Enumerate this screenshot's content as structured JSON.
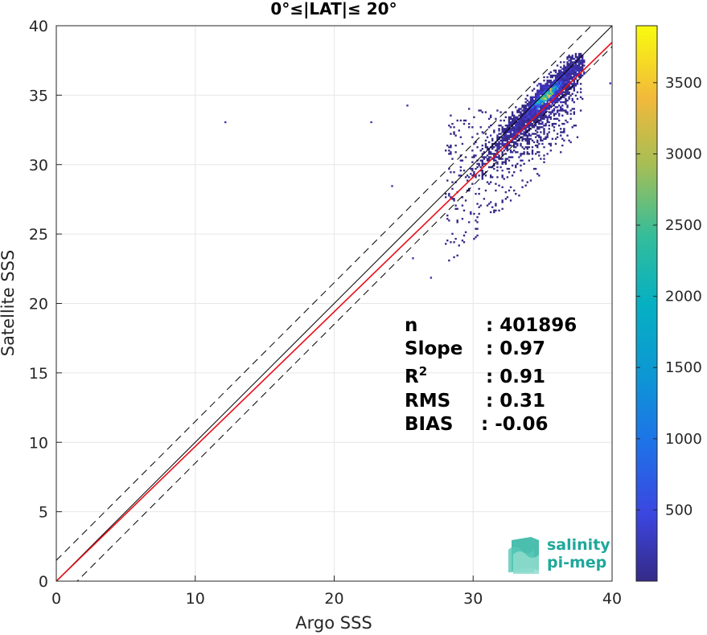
{
  "chart_data": {
    "type": "heatmap",
    "title": "0°≤|LAT|≤ 20°",
    "xlabel": "Argo SSS",
    "ylabel": "Satellite SSS",
    "xlim": [
      0,
      40
    ],
    "ylim": [
      0,
      40
    ],
    "xticks": [
      "0",
      "10",
      "20",
      "30",
      "40"
    ],
    "yticks": [
      "0",
      "5",
      "10",
      "15",
      "20",
      "25",
      "30",
      "35",
      "40"
    ],
    "grid": true,
    "lines": [
      {
        "name": "identity",
        "slope": 1.0,
        "intercept": 0.0,
        "color": "#000000",
        "style": "solid"
      },
      {
        "name": "upper-bound",
        "slope": 1.0,
        "intercept": 1.5,
        "color": "#000000",
        "style": "dashed"
      },
      {
        "name": "lower-bound",
        "slope": 1.0,
        "intercept": -1.5,
        "color": "#000000",
        "style": "dashed"
      },
      {
        "name": "regression",
        "slope": 0.97,
        "intercept": 0.0,
        "color": "#e8101a",
        "style": "solid"
      }
    ],
    "density_core": {
      "x_center": 35.2,
      "y_center": 34.9,
      "x_range": [
        27,
        38
      ],
      "y_range": [
        22,
        38
      ]
    },
    "outliers": [
      [
        12.1,
        33.0
      ],
      [
        22.6,
        33.0
      ],
      [
        39.8,
        35.8
      ],
      [
        25.2,
        34.2
      ],
      [
        24.1,
        28.4
      ],
      [
        25.6,
        23.2
      ],
      [
        26.9,
        21.8
      ]
    ],
    "colorbar": {
      "min": 0,
      "max": 3900,
      "ticks": [
        "500",
        "1000",
        "1500",
        "2000",
        "2500",
        "3000",
        "3500"
      ],
      "colormap": "parula"
    },
    "stats": [
      {
        "label": "n",
        "value": ": 401896"
      },
      {
        "label": "Slope",
        "value": ": 0.97"
      },
      {
        "label": "R",
        "sup": "2",
        "value": ": 0.91"
      },
      {
        "label": "RMS",
        "value": ": 0.31"
      },
      {
        "label": "BIAS",
        "value": ": -0.06"
      }
    ]
  },
  "logo": {
    "line1": "salinity",
    "line2": "pi-mep"
  }
}
